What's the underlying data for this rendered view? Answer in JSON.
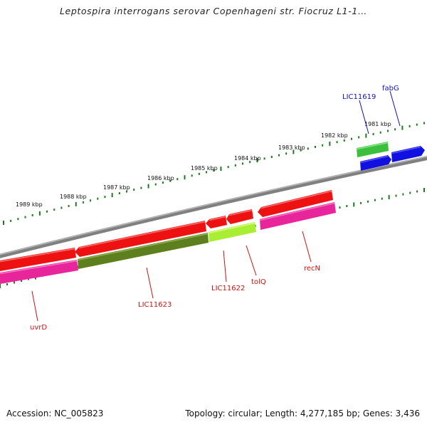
{
  "title": "Leptospira interrogans serovar Copenhageni str. Fiocruz L1-1…",
  "footer": {
    "accession_label": "Accession:",
    "accession": "NC_005823",
    "topology_label": "Topology:",
    "topology": "circular",
    "length_label": "Length:",
    "length": "4,277,185 bp",
    "genes_label": "Genes:",
    "genes": "3,436"
  },
  "footer_text": {
    "accession": "Accession: NC_005823",
    "summary": "Topology: circular; Length: 4,277,185 bp; Genes: 3,436"
  },
  "scale": {
    "unit": "kbp",
    "ticks": [
      {
        "kbp": 1981,
        "label": "1981 kbp"
      },
      {
        "kbp": 1982,
        "label": "1982 kbp"
      },
      {
        "kbp": 1983,
        "label": "1983 kbp"
      },
      {
        "kbp": 1984,
        "label": "1984 kbp"
      },
      {
        "kbp": 1985,
        "label": "1985 kbp"
      },
      {
        "kbp": 1986,
        "label": "1986 kbp"
      },
      {
        "kbp": 1987,
        "label": "1987 kbp"
      },
      {
        "kbp": 1988,
        "label": "1988 kbp"
      },
      {
        "kbp": 1989,
        "label": "1989 kbp"
      }
    ]
  },
  "genes": [
    {
      "name": "fabG",
      "strand": "forward",
      "color": "#1010e0",
      "label_color": "#1010c0"
    },
    {
      "name": "LIC11619",
      "strand": "forward",
      "color": "#1010e0",
      "label_color": "#1010c0"
    },
    {
      "name": "recN",
      "strand": "reverse",
      "color": "#ee1111",
      "label_color": "#cc1111"
    },
    {
      "name": "tolQ",
      "strand": "reverse",
      "color": "#ee1111",
      "label_color": "#cc1111"
    },
    {
      "name": "LIC11622",
      "strand": "reverse",
      "color": "#ee1111",
      "label_color": "#cc1111"
    },
    {
      "name": "LIC11623",
      "strand": "reverse",
      "color": "#ee1111",
      "label_color": "#cc1111"
    },
    {
      "name": "uvrD",
      "strand": "reverse",
      "color": "#ee1111",
      "label_color": "#cc1111"
    }
  ],
  "colors": {
    "backbone": "#808080",
    "tick": "#1e7a1e",
    "forward_cds": "#1010e0",
    "reverse_cds": "#ee1111",
    "cog_green": "#3cbf3c",
    "cog_magenta": "#e8259a",
    "cog_olive": "#5e7f1e",
    "cog_lime": "#aaee33"
  }
}
